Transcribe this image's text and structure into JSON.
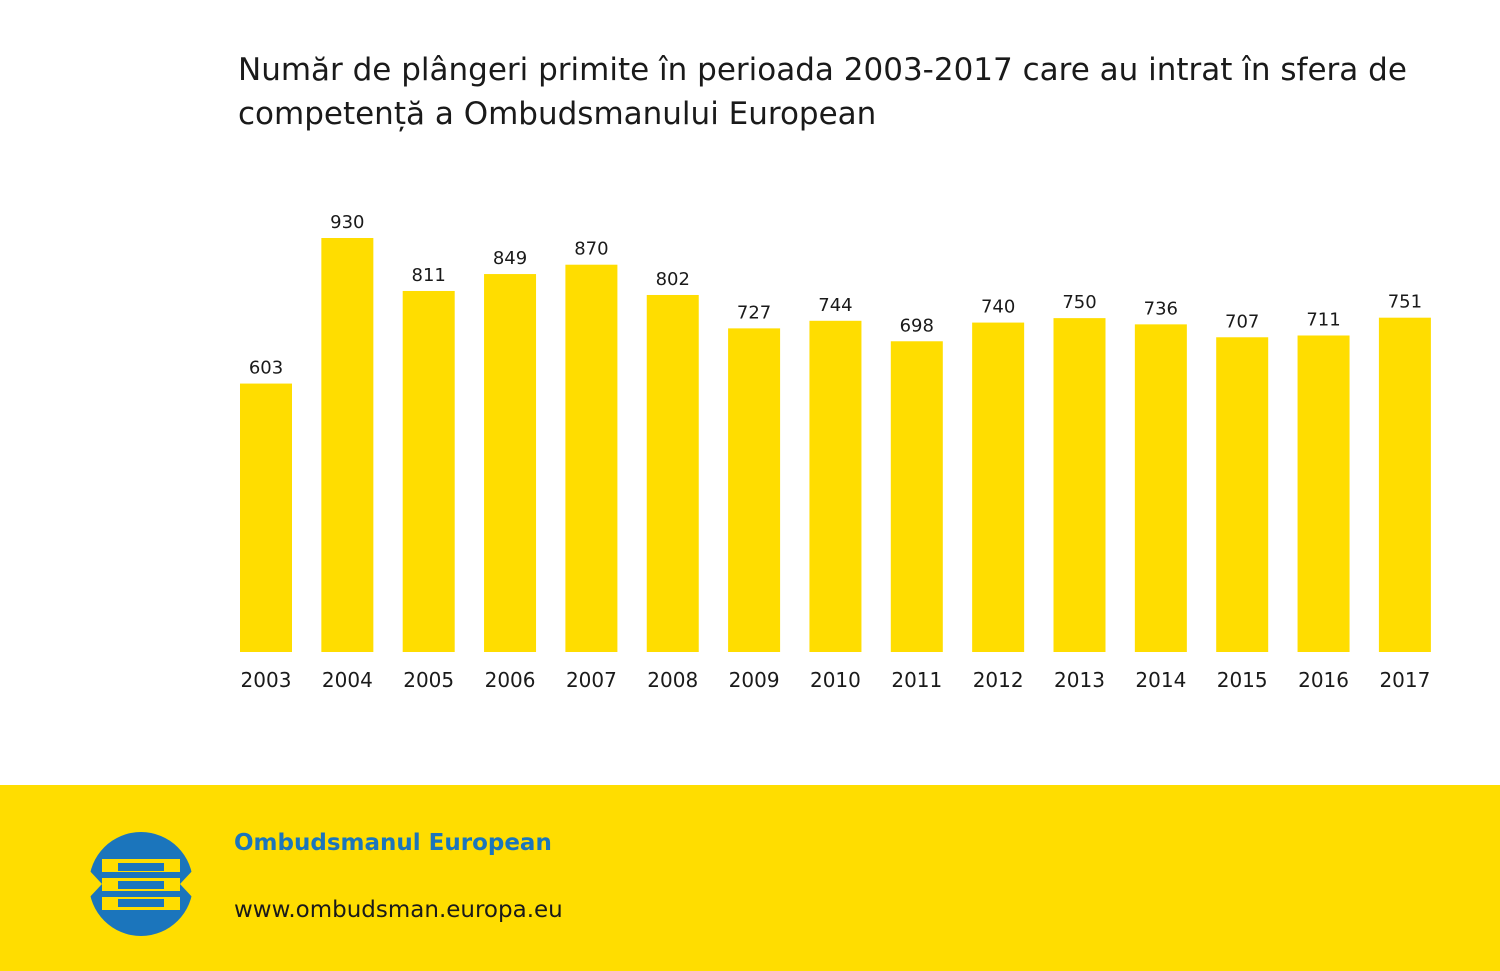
{
  "chart_data": {
    "type": "bar",
    "title": "Număr de plângeri primite în perioada 2003-2017 care au intrat în sfera de competență a Ombudsmanului European",
    "categories": [
      "2003",
      "2004",
      "2005",
      "2006",
      "2007",
      "2008",
      "2009",
      "2010",
      "2011",
      "2012",
      "2013",
      "2014",
      "2015",
      "2016",
      "2017"
    ],
    "values": [
      603,
      930,
      811,
      849,
      870,
      802,
      727,
      744,
      698,
      740,
      750,
      736,
      707,
      711,
      751
    ],
    "xlabel": "",
    "ylabel": "",
    "ylim": [
      0,
      930
    ],
    "grid": false,
    "legend": "none"
  },
  "colors": {
    "bar": "#FFDD00",
    "footer_bg": "#FFDD00",
    "brand_blue": "#1B75BC",
    "text": "#1a1a1a"
  },
  "footer": {
    "name": "Ombudsmanul European",
    "url": "www.ombudsman.europa.eu",
    "logo_icon": "european-ombudsman-logo-icon"
  }
}
